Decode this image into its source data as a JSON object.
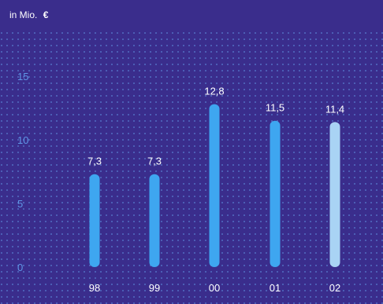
{
  "chart_data": {
    "type": "bar",
    "unit_label_prefix": "in Mio.",
    "unit_label_symbol": "€",
    "categories": [
      "98",
      "99",
      "00",
      "01",
      "02"
    ],
    "values": [
      7.3,
      7.3,
      12.8,
      11.5,
      11.4
    ],
    "value_labels": [
      "7,3",
      "7,3",
      "12,8",
      "11,5",
      "11,4"
    ],
    "y_ticks": [
      0,
      5,
      10,
      15
    ],
    "ylim": [
      0,
      18
    ],
    "grid": true,
    "colors": {
      "background": "#3a2d8c",
      "grid_dots": "#5e8fe0",
      "bar": "#3ea6f0",
      "bar_highlight": "#a9d3f4",
      "tick_text": "#5f96e6",
      "text": "#ffffff"
    },
    "highlight_index": 4
  }
}
